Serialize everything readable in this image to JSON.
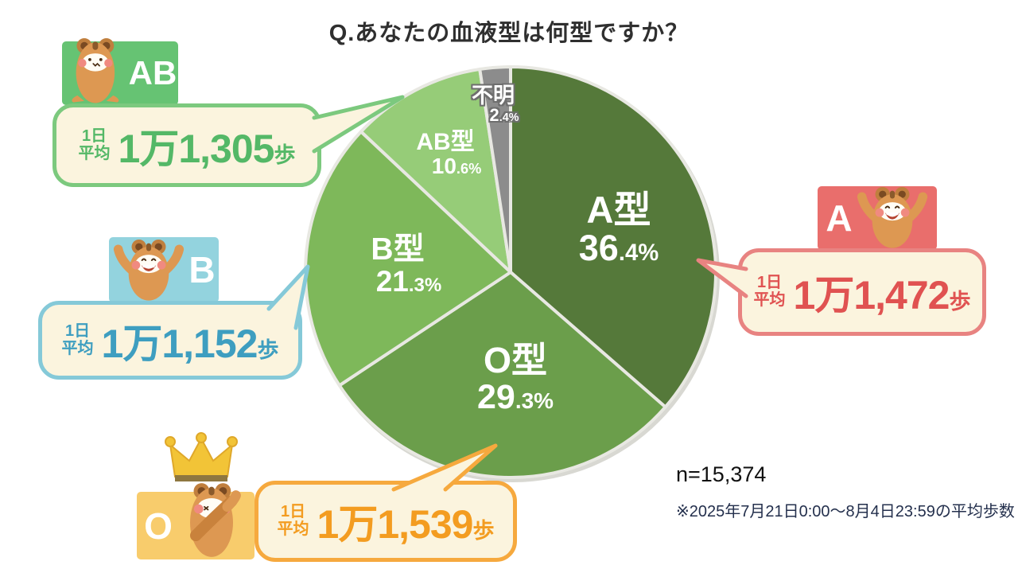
{
  "title": "Q.あなたの血液型は何型ですか？",
  "chart_data": {
    "type": "pie",
    "title": "Q.あなたの血液型は何型ですか？",
    "labels": [
      "A型",
      "O型",
      "B型",
      "AB型",
      "不明"
    ],
    "values": [
      36.4,
      29.3,
      21.3,
      10.6,
      2.4
    ],
    "colors": [
      "#55793A",
      "#6B9E4B",
      "#7EB85A",
      "#96CC78",
      "#8C8C8C"
    ],
    "separator_color": "#E8E8E2",
    "start_angle_deg": 0,
    "direction": "clockwise",
    "n_label": "n=15,374"
  },
  "callouts": [
    {
      "blood_type": "AB",
      "avg_line1": "1日",
      "avg_line2": "平均",
      "steps": "1万1,305",
      "unit": "歩",
      "accent": "#66C373",
      "border": "#7CC97E",
      "text": "#54B867"
    },
    {
      "blood_type": "B",
      "avg_line1": "1日",
      "avg_line2": "平均",
      "steps": "1万1,152",
      "unit": "歩",
      "accent": "#93D3DE",
      "border": "#85C9D8",
      "text": "#3E9EC0"
    },
    {
      "blood_type": "O",
      "avg_line1": "1日",
      "avg_line2": "平均",
      "steps": "1万1,539",
      "unit": "歩",
      "accent": "#F8CC6C",
      "border": "#F6A93E",
      "text": "#F39C20"
    },
    {
      "blood_type": "A",
      "avg_line1": "1日",
      "avg_line2": "平均",
      "steps": "1万1,472",
      "unit": "歩",
      "accent": "#E96E6C",
      "border": "#E88381",
      "text": "#E05251"
    }
  ],
  "icons": {
    "mascot": "hamster-mascot-icon",
    "crown": "crown-icon"
  },
  "footnote": {
    "n_label": "n=15,374",
    "note": "※2025年7月21日0:00〜8月4日23:59の平均歩数"
  }
}
